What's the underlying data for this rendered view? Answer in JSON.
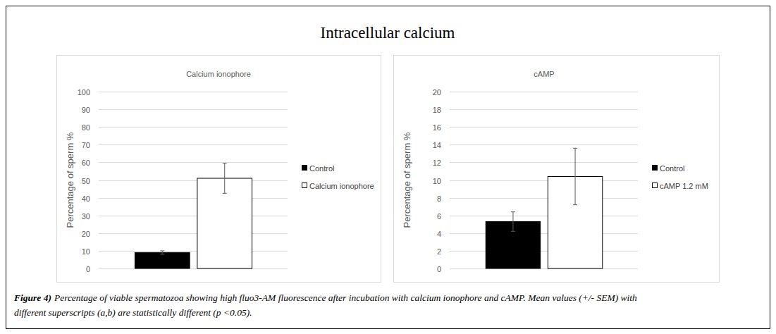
{
  "title": "Intracellular calcium",
  "caption_label": "Figure 4)",
  "caption": "Percentage of viable spermatozoa showing high fluo3-AM fluorescence after incubation with calcium ionophore and cAMP. Mean values (+/- SEM) with different superscripts (a,b) are statistically different (p <0.05).",
  "chart_data": [
    {
      "type": "bar",
      "title": "Calcium ionophore",
      "y_label": "Percentage of sperm %",
      "categories": [
        null
      ],
      "series": [
        {
          "name": "Control",
          "color": "#000000",
          "values": [
            9
          ],
          "errors": [
            1
          ]
        },
        {
          "name": "Calcium ionophore",
          "color": "#ffffff",
          "values": [
            51
          ],
          "errors": [
            8.5
          ]
        }
      ],
      "ylim": [
        0,
        100
      ],
      "yticks": [
        0,
        10,
        20,
        30,
        40,
        50,
        60,
        70,
        80,
        90,
        100
      ],
      "grid": true,
      "legend": "right",
      "tick_labels": "y"
    },
    {
      "type": "bar",
      "title": "cAMP",
      "y_label": "Percentage of sperm %",
      "categories": [
        null
      ],
      "series": [
        {
          "name": "Control",
          "color": "#000000",
          "values": [
            5.3
          ],
          "errors": [
            1.1
          ]
        },
        {
          "name": "cAMP 1.2 mM",
          "color": "#ffffff",
          "values": [
            10.4
          ],
          "errors": [
            3.2
          ]
        }
      ],
      "ylim": [
        0,
        20
      ],
      "yticks": [
        0,
        2,
        4,
        6,
        8,
        10,
        12,
        14,
        16,
        18,
        20
      ],
      "grid": true,
      "legend": "right",
      "tick_labels": "y"
    }
  ]
}
